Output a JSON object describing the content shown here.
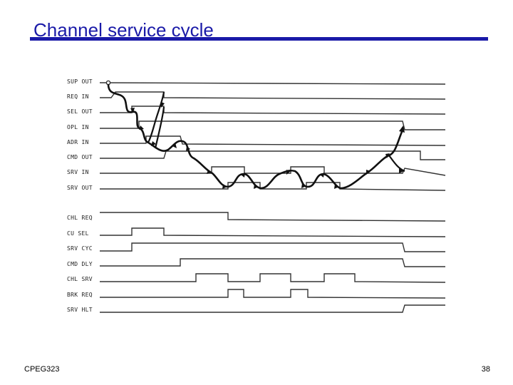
{
  "title": "Channel service cycle",
  "footer": {
    "course": "CPEG323",
    "page": "38"
  },
  "diagram": {
    "upper_signals": [
      "SUP OUT",
      "REQ IN",
      "SEL OUT",
      "OPL IN",
      "ADR IN",
      "CMD OUT",
      "SRV IN",
      "SRV OUT"
    ],
    "lower_signals": [
      "CHL REQ",
      "CU SEL",
      "SRV CYC",
      "CMD DLY",
      "CHL SRV",
      "BRK REQ",
      "SRV HLT"
    ]
  }
}
